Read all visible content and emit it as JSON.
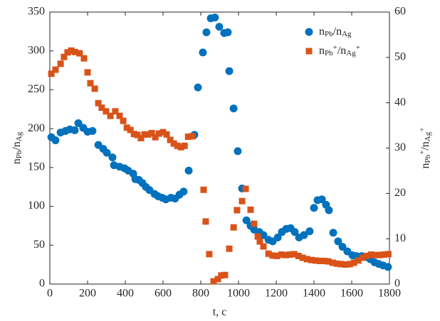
{
  "chart_data": {
    "type": "scatter",
    "xlabel": [
      {
        "text": "t, c"
      }
    ],
    "ylabel": [
      {
        "text": "n"
      },
      {
        "text": "Pb",
        "baseline": "sub"
      },
      {
        "text": "/n"
      },
      {
        "text": "Ag",
        "baseline": "sub"
      }
    ],
    "y2label": [
      {
        "text": "n"
      },
      {
        "text": "Pb",
        "baseline": "sub"
      },
      {
        "text": "+",
        "baseline": "super"
      },
      {
        "text": "/n"
      },
      {
        "text": "Ag",
        "baseline": "sub"
      },
      {
        "text": "+",
        "baseline": "super"
      }
    ],
    "xlim": [
      0,
      1800
    ],
    "xticks": [
      0,
      200,
      400,
      600,
      800,
      1000,
      1200,
      1400,
      1600,
      1800
    ],
    "ylim": [
      0,
      350
    ],
    "yticks": [
      0,
      50,
      100,
      150,
      200,
      250,
      300,
      350
    ],
    "y2lim": [
      0,
      60
    ],
    "y2ticks": [
      0,
      10,
      20,
      30,
      40,
      50,
      60
    ],
    "legend": "top-right",
    "series": [
      {
        "name": [
          {
            "text": "n"
          },
          {
            "text": "Pb",
            "baseline": "sub"
          },
          {
            "text": "/n"
          },
          {
            "text": "Ag",
            "baseline": "sub"
          }
        ],
        "color": "#0072bd",
        "marker": "circle",
        "x": [
          8,
          30,
          57,
          83,
          106,
          132,
          151,
          177,
          200,
          226,
          257,
          283,
          302,
          332,
          340,
          370,
          396,
          415,
          442,
          453,
          472,
          491,
          509,
          528,
          555,
          574,
          596,
          615,
          642,
          664,
          687,
          709,
          736,
          766,
          785,
          811,
          830,
          853,
          875,
          898,
          924,
          943,
          951,
          974,
          996,
          1019,
          1042,
          1064,
          1083,
          1110,
          1132,
          1159,
          1181,
          1208,
          1230,
          1253,
          1276,
          1298,
          1321,
          1347,
          1377,
          1400,
          1419,
          1442,
          1464,
          1479,
          1502,
          1528,
          1551,
          1577,
          1604,
          1626,
          1653,
          1675,
          1698,
          1721,
          1743,
          1766,
          1792
        ],
        "values": [
          189,
          185,
          195,
          197,
          199,
          198,
          207,
          201,
          196,
          197,
          179,
          174,
          169,
          163,
          153,
          151,
          149,
          146,
          142,
          135,
          134,
          130,
          125,
          121,
          116,
          113,
          111,
          109,
          111,
          110,
          115,
          119,
          146,
          192,
          253,
          298,
          324,
          342,
          343,
          331,
          323,
          324,
          274,
          226,
          171,
          123,
          82,
          75,
          70,
          67,
          63,
          57,
          55,
          60,
          67,
          71,
          72,
          67,
          60,
          63,
          68,
          98,
          108,
          109,
          102,
          95,
          66,
          55,
          48,
          42,
          37,
          36,
          36,
          35,
          32,
          28,
          26,
          24,
          22
        ]
      },
      {
        "name": [
          {
            "text": "n"
          },
          {
            "text": "Pb",
            "baseline": "sub"
          },
          {
            "text": "+",
            "baseline": "super"
          },
          {
            "text": "/n"
          },
          {
            "text": "Ag",
            "baseline": "sub"
          },
          {
            "text": "+",
            "baseline": "super"
          }
        ],
        "color": "#d95319",
        "marker": "square",
        "axis": "y2",
        "x": [
          8,
          30,
          57,
          75,
          94,
          113,
          132,
          158,
          181,
          200,
          215,
          238,
          257,
          275,
          298,
          321,
          347,
          370,
          389,
          408,
          427,
          446,
          464,
          483,
          502,
          521,
          540,
          559,
          578,
          600,
          619,
          638,
          657,
          676,
          695,
          714,
          733,
          755,
          815,
          826,
          845,
          868,
          891,
          909,
          928,
          951,
          974,
          992,
          1019,
          1038,
          1064,
          1083,
          1102,
          1113,
          1132,
          1159,
          1181,
          1204,
          1227,
          1250,
          1272,
          1295,
          1318,
          1340,
          1363,
          1386,
          1408,
          1431,
          1454,
          1476,
          1499,
          1522,
          1544,
          1567,
          1590,
          1612,
          1635,
          1658,
          1680,
          1703,
          1726,
          1748,
          1771,
          1794
        ],
        "values": [
          46.4,
          47.3,
          48.6,
          50.1,
          51.1,
          51.5,
          51.2,
          50.9,
          49.8,
          46.7,
          44.3,
          43.1,
          39.9,
          38.9,
          38.1,
          37.1,
          38.1,
          37.1,
          36.0,
          34.5,
          34.0,
          33.1,
          32.9,
          32.2,
          33.0,
          33.0,
          33.3,
          32.4,
          33.2,
          33.5,
          33.0,
          31.8,
          31.0,
          30.5,
          30.2,
          30.5,
          32.5,
          32.6,
          20.8,
          13.8,
          6.6,
          0.6,
          1.1,
          1.9,
          2.0,
          7.8,
          12.5,
          16.3,
          18.3,
          21.0,
          16.4,
          13.3,
          10.5,
          9.4,
          8.3,
          6.7,
          6.3,
          6.2,
          6.5,
          6.4,
          6.5,
          6.6,
          6.2,
          5.8,
          5.5,
          5.3,
          5.2,
          5.1,
          5.1,
          5.0,
          4.7,
          4.5,
          4.4,
          4.3,
          4.4,
          4.7,
          5.2,
          5.8,
          6.2,
          6.5,
          6.4,
          6.4,
          6.5,
          6.6
        ]
      }
    ]
  }
}
